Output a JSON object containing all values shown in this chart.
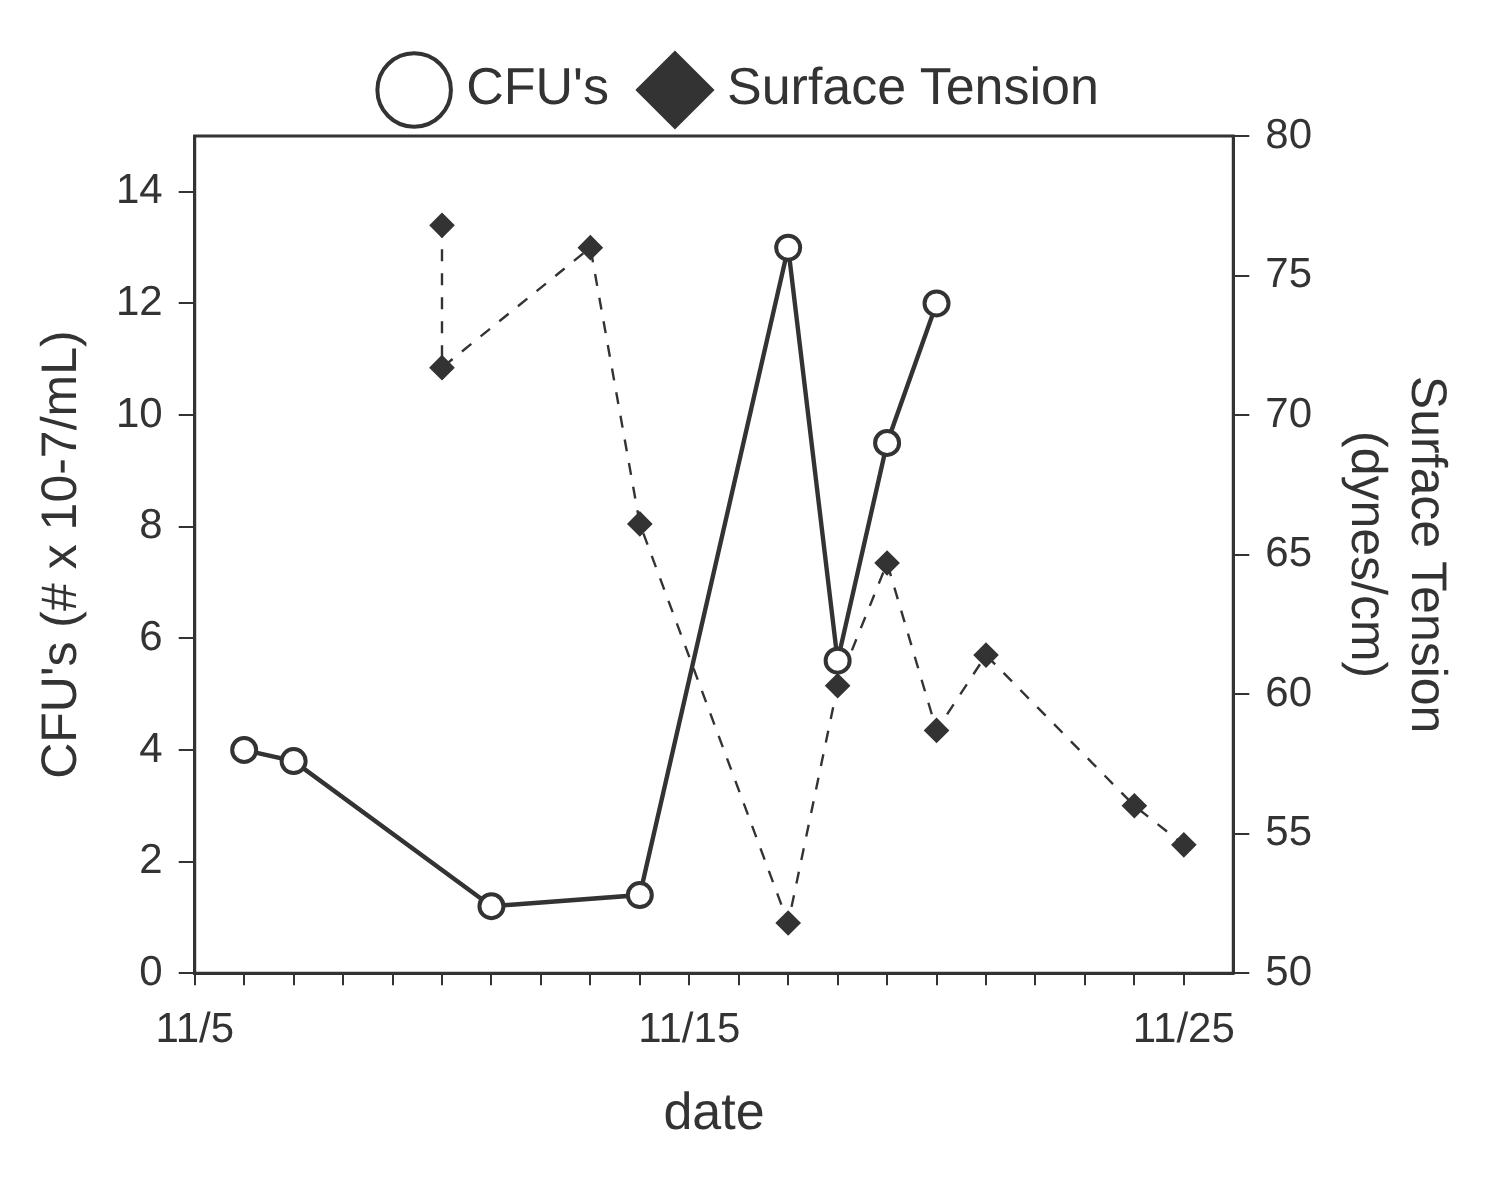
{
  "chart_data": {
    "type": "line",
    "xlabel": "date",
    "ylabel": "CFU's (# x 10-7/mL)",
    "y2label": "Surface Tension (dynes/cm)",
    "legend": "top",
    "grid": false,
    "xlim": [
      "--11-05",
      "--11-26"
    ],
    "xticks": [
      {
        "value": "--11-05",
        "label": "11/5"
      },
      {
        "value": "--11-06",
        "label": null
      },
      {
        "value": "--11-07",
        "label": null
      },
      {
        "value": "--11-08",
        "label": null
      },
      {
        "value": "--11-09",
        "label": null
      },
      {
        "value": "--11-10",
        "label": null
      },
      {
        "value": "--11-11",
        "label": null
      },
      {
        "value": "--11-12",
        "label": null
      },
      {
        "value": "--11-13",
        "label": null
      },
      {
        "value": "--11-14",
        "label": null
      },
      {
        "value": "--11-15",
        "label": "11/15"
      },
      {
        "value": "--11-16",
        "label": null
      },
      {
        "value": "--11-17",
        "label": null
      },
      {
        "value": "--11-18",
        "label": null
      },
      {
        "value": "--11-19",
        "label": null
      },
      {
        "value": "--11-20",
        "label": null
      },
      {
        "value": "--11-21",
        "label": null
      },
      {
        "value": "--11-22",
        "label": null
      },
      {
        "value": "--11-23",
        "label": null
      },
      {
        "value": "--11-24",
        "label": null
      },
      {
        "value": "--11-25",
        "label": "11/25"
      }
    ],
    "ylim": [
      0,
      15
    ],
    "yticks": [
      0,
      2,
      4,
      6,
      8,
      10,
      12,
      14
    ],
    "y2lim": [
      50,
      80
    ],
    "y2ticks": [
      50,
      55,
      60,
      65,
      70,
      75,
      80
    ],
    "series": [
      {
        "name": "CFU's",
        "color": "#333333",
        "marker": "circle",
        "line_style": "solid",
        "x": [
          "--11-06",
          "--11-07",
          "--11-11",
          "--11-14",
          "--11-17",
          "--11-18",
          "--11-19",
          "--11-20"
        ],
        "values": [
          4.0,
          3.8,
          1.2,
          1.4,
          13.0,
          5.6,
          9.5,
          12.0
        ]
      },
      {
        "name": "Surface Tension",
        "color": "#333333",
        "marker": "diamond",
        "line_style": "dashed",
        "axis": "y2",
        "x": [
          "--11-10",
          "--11-10",
          "--11-13",
          "--11-14",
          "--11-17",
          "--11-18",
          "--11-19",
          "--11-20",
          "--11-21",
          "--11-24",
          "--11-25"
        ],
        "values": [
          76.8,
          71.7,
          76.0,
          66.1,
          51.8,
          60.3,
          64.7,
          58.7,
          61.4,
          56.0,
          54.6
        ]
      }
    ]
  }
}
